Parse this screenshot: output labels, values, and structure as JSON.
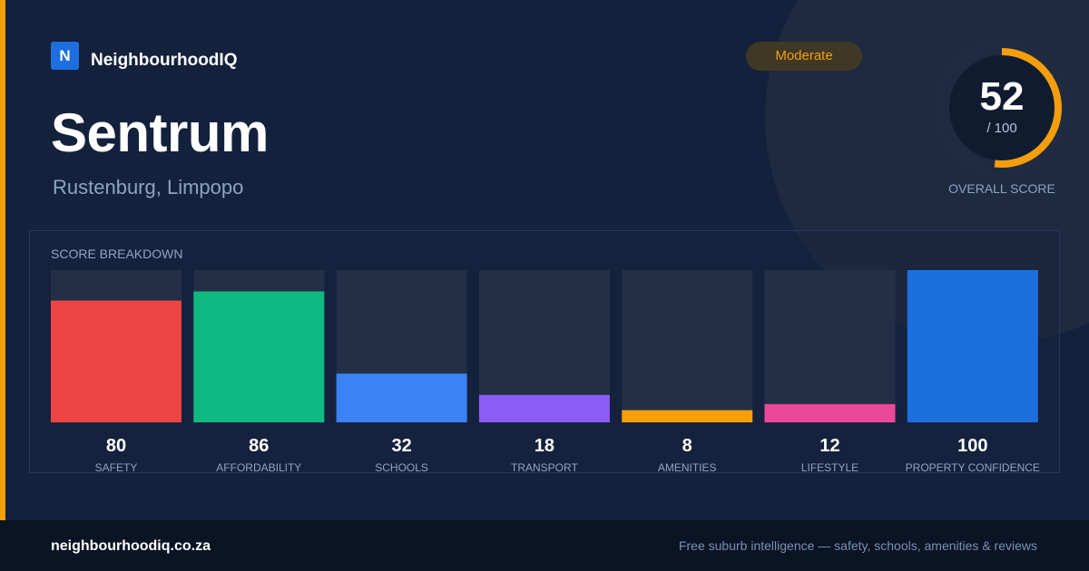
{
  "brand": {
    "logo_letter": "N",
    "name": "NeighbourhoodIQ"
  },
  "header": {
    "title": "Sentrum",
    "subtitle": "Rustenburg, Limpopo",
    "badge": "Moderate"
  },
  "overall": {
    "score": 52,
    "score_text": "52",
    "denominator": "/ 100",
    "label": "OVERALL SCORE",
    "ring_color": "#f59e0b"
  },
  "breakdown": {
    "title": "SCORE BREAKDOWN"
  },
  "chart_data": {
    "type": "bar",
    "categories": [
      "SAFETY",
      "AFFORDABILITY",
      "SCHOOLS",
      "TRANSPORT",
      "AMENITIES",
      "LIFESTYLE",
      "PROPERTY CONFIDENCE"
    ],
    "values": [
      80,
      86,
      32,
      18,
      8,
      12,
      100
    ],
    "colors": [
      "#ef4444",
      "#10b981",
      "#3b82f6",
      "#8b5cf6",
      "#f59e0b",
      "#ec4899",
      "#1d6fe0"
    ],
    "ylim": [
      0,
      100
    ],
    "title": "SCORE BREAKDOWN",
    "xlabel": "",
    "ylabel": "",
    "grid": false
  },
  "footer": {
    "domain": "neighbourhoodiq.co.za",
    "tagline": "Free suburb intelligence — safety, schools, amenities & reviews"
  }
}
